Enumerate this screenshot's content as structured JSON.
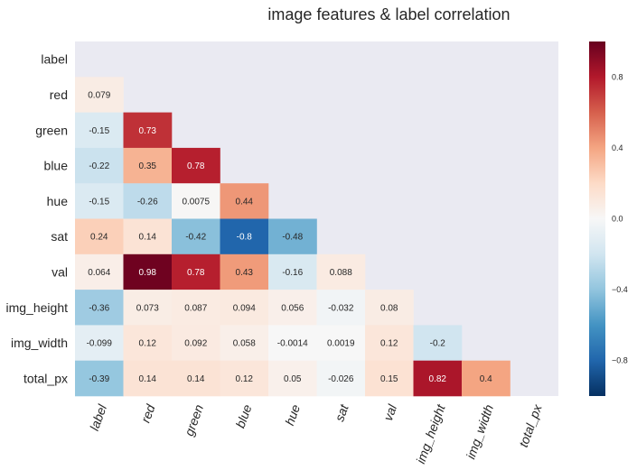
{
  "chart_data": {
    "type": "heatmap",
    "title": "image features & label correlation",
    "labels": [
      "label",
      "red",
      "green",
      "blue",
      "hue",
      "sat",
      "val",
      "img_height",
      "img_width",
      "total_px"
    ],
    "mask": "upper-triangle-including-diagonal",
    "values": [
      [
        null,
        null,
        null,
        null,
        null,
        null,
        null,
        null,
        null,
        null
      ],
      [
        0.079,
        null,
        null,
        null,
        null,
        null,
        null,
        null,
        null,
        null
      ],
      [
        -0.15,
        0.73,
        null,
        null,
        null,
        null,
        null,
        null,
        null,
        null
      ],
      [
        -0.22,
        0.35,
        0.78,
        null,
        null,
        null,
        null,
        null,
        null,
        null
      ],
      [
        -0.15,
        -0.26,
        0.0075,
        0.44,
        null,
        null,
        null,
        null,
        null,
        null
      ],
      [
        0.24,
        0.14,
        -0.42,
        -0.8,
        -0.48,
        null,
        null,
        null,
        null,
        null
      ],
      [
        0.064,
        0.98,
        0.78,
        0.43,
        -0.16,
        0.088,
        null,
        null,
        null,
        null
      ],
      [
        -0.36,
        0.073,
        0.087,
        0.094,
        0.056,
        -0.032,
        0.08,
        null,
        null,
        null
      ],
      [
        -0.099,
        0.12,
        0.092,
        0.058,
        -0.0014,
        0.0019,
        0.12,
        -0.2,
        null,
        null
      ],
      [
        -0.39,
        0.14,
        0.14,
        0.12,
        0.05,
        -0.026,
        0.15,
        0.82,
        0.4,
        null
      ]
    ],
    "value_labels": [
      [
        "",
        "",
        "",
        "",
        "",
        "",
        "",
        "",
        "",
        ""
      ],
      [
        "0.079",
        "",
        "",
        "",
        "",
        "",
        "",
        "",
        "",
        ""
      ],
      [
        "-0.15",
        "0.73",
        "",
        "",
        "",
        "",
        "",
        "",
        "",
        ""
      ],
      [
        "-0.22",
        "0.35",
        "0.78",
        "",
        "",
        "",
        "",
        "",
        "",
        ""
      ],
      [
        "-0.15",
        "-0.26",
        "0.0075",
        "0.44",
        "",
        "",
        "",
        "",
        "",
        ""
      ],
      [
        "0.24",
        "0.14",
        "-0.42",
        "-0.8",
        "-0.48",
        "",
        "",
        "",
        "",
        ""
      ],
      [
        "0.064",
        "0.98",
        "0.78",
        "0.43",
        "-0.16",
        "0.088",
        "",
        "",
        "",
        ""
      ],
      [
        "-0.36",
        "0.073",
        "0.087",
        "0.094",
        "0.056",
        "-0.032",
        "0.08",
        "",
        "",
        ""
      ],
      [
        "-0.099",
        "0.12",
        "0.092",
        "0.058",
        "-0.0014",
        "0.0019",
        "0.12",
        "-0.2",
        "",
        ""
      ],
      [
        "-0.39",
        "0.14",
        "0.14",
        "0.12",
        "0.05",
        "-0.026",
        "0.15",
        "0.82",
        "0.4",
        ""
      ]
    ],
    "colorscale": "RdBu_r",
    "vmin": -1,
    "vmax": 1,
    "colorbar_ticks": [
      0.8,
      0.4,
      0.0,
      -0.4,
      -0.8
    ],
    "colorbar_tick_labels": [
      "0.8",
      "0.4",
      "0.0",
      "−0.4",
      "−0.8"
    ],
    "mask_color": "#eaeaf2",
    "xtick_rotation": "rotated ~70°, italic"
  }
}
